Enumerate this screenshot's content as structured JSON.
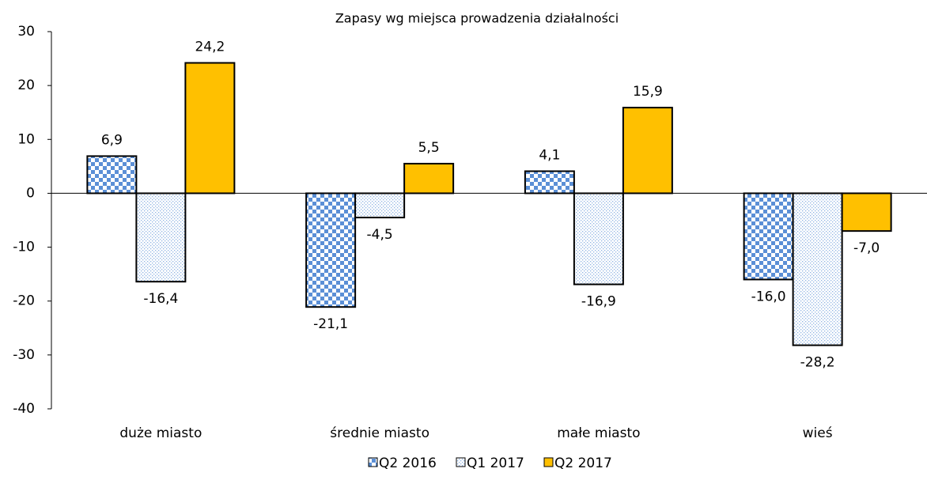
{
  "chart_data": {
    "type": "bar",
    "title": "Zapasy wg miejsca prowadzenia działalności",
    "categories": [
      "duże miasto",
      "średnie miasto",
      "małe miasto",
      "wieś"
    ],
    "series": [
      {
        "name": "Q2 2016",
        "color": "#5b8fd6",
        "pattern": "checker",
        "values": [
          6.9,
          -21.1,
          4.1,
          -16.0
        ],
        "value_labels": [
          "6,9",
          "-21,1",
          "4,1",
          "-16,0"
        ]
      },
      {
        "name": "Q1 2017",
        "color": "#8fb3e3",
        "pattern": "dots",
        "values": [
          -16.4,
          -4.5,
          -16.9,
          -28.2
        ],
        "value_labels": [
          "-16,4",
          "-4,5",
          "-16,9",
          "-28,2"
        ]
      },
      {
        "name": "Q2 2017",
        "color": "#ffc000",
        "pattern": "solid",
        "values": [
          24.2,
          5.5,
          15.9,
          -7.0
        ],
        "value_labels": [
          "24,2",
          "5,5",
          "15,9",
          "-7,0"
        ]
      }
    ],
    "ylim": [
      -40,
      30
    ],
    "yticks": [
      -40,
      -30,
      -20,
      -10,
      0,
      10,
      20,
      30
    ],
    "grid": false,
    "legend": "bottom"
  }
}
